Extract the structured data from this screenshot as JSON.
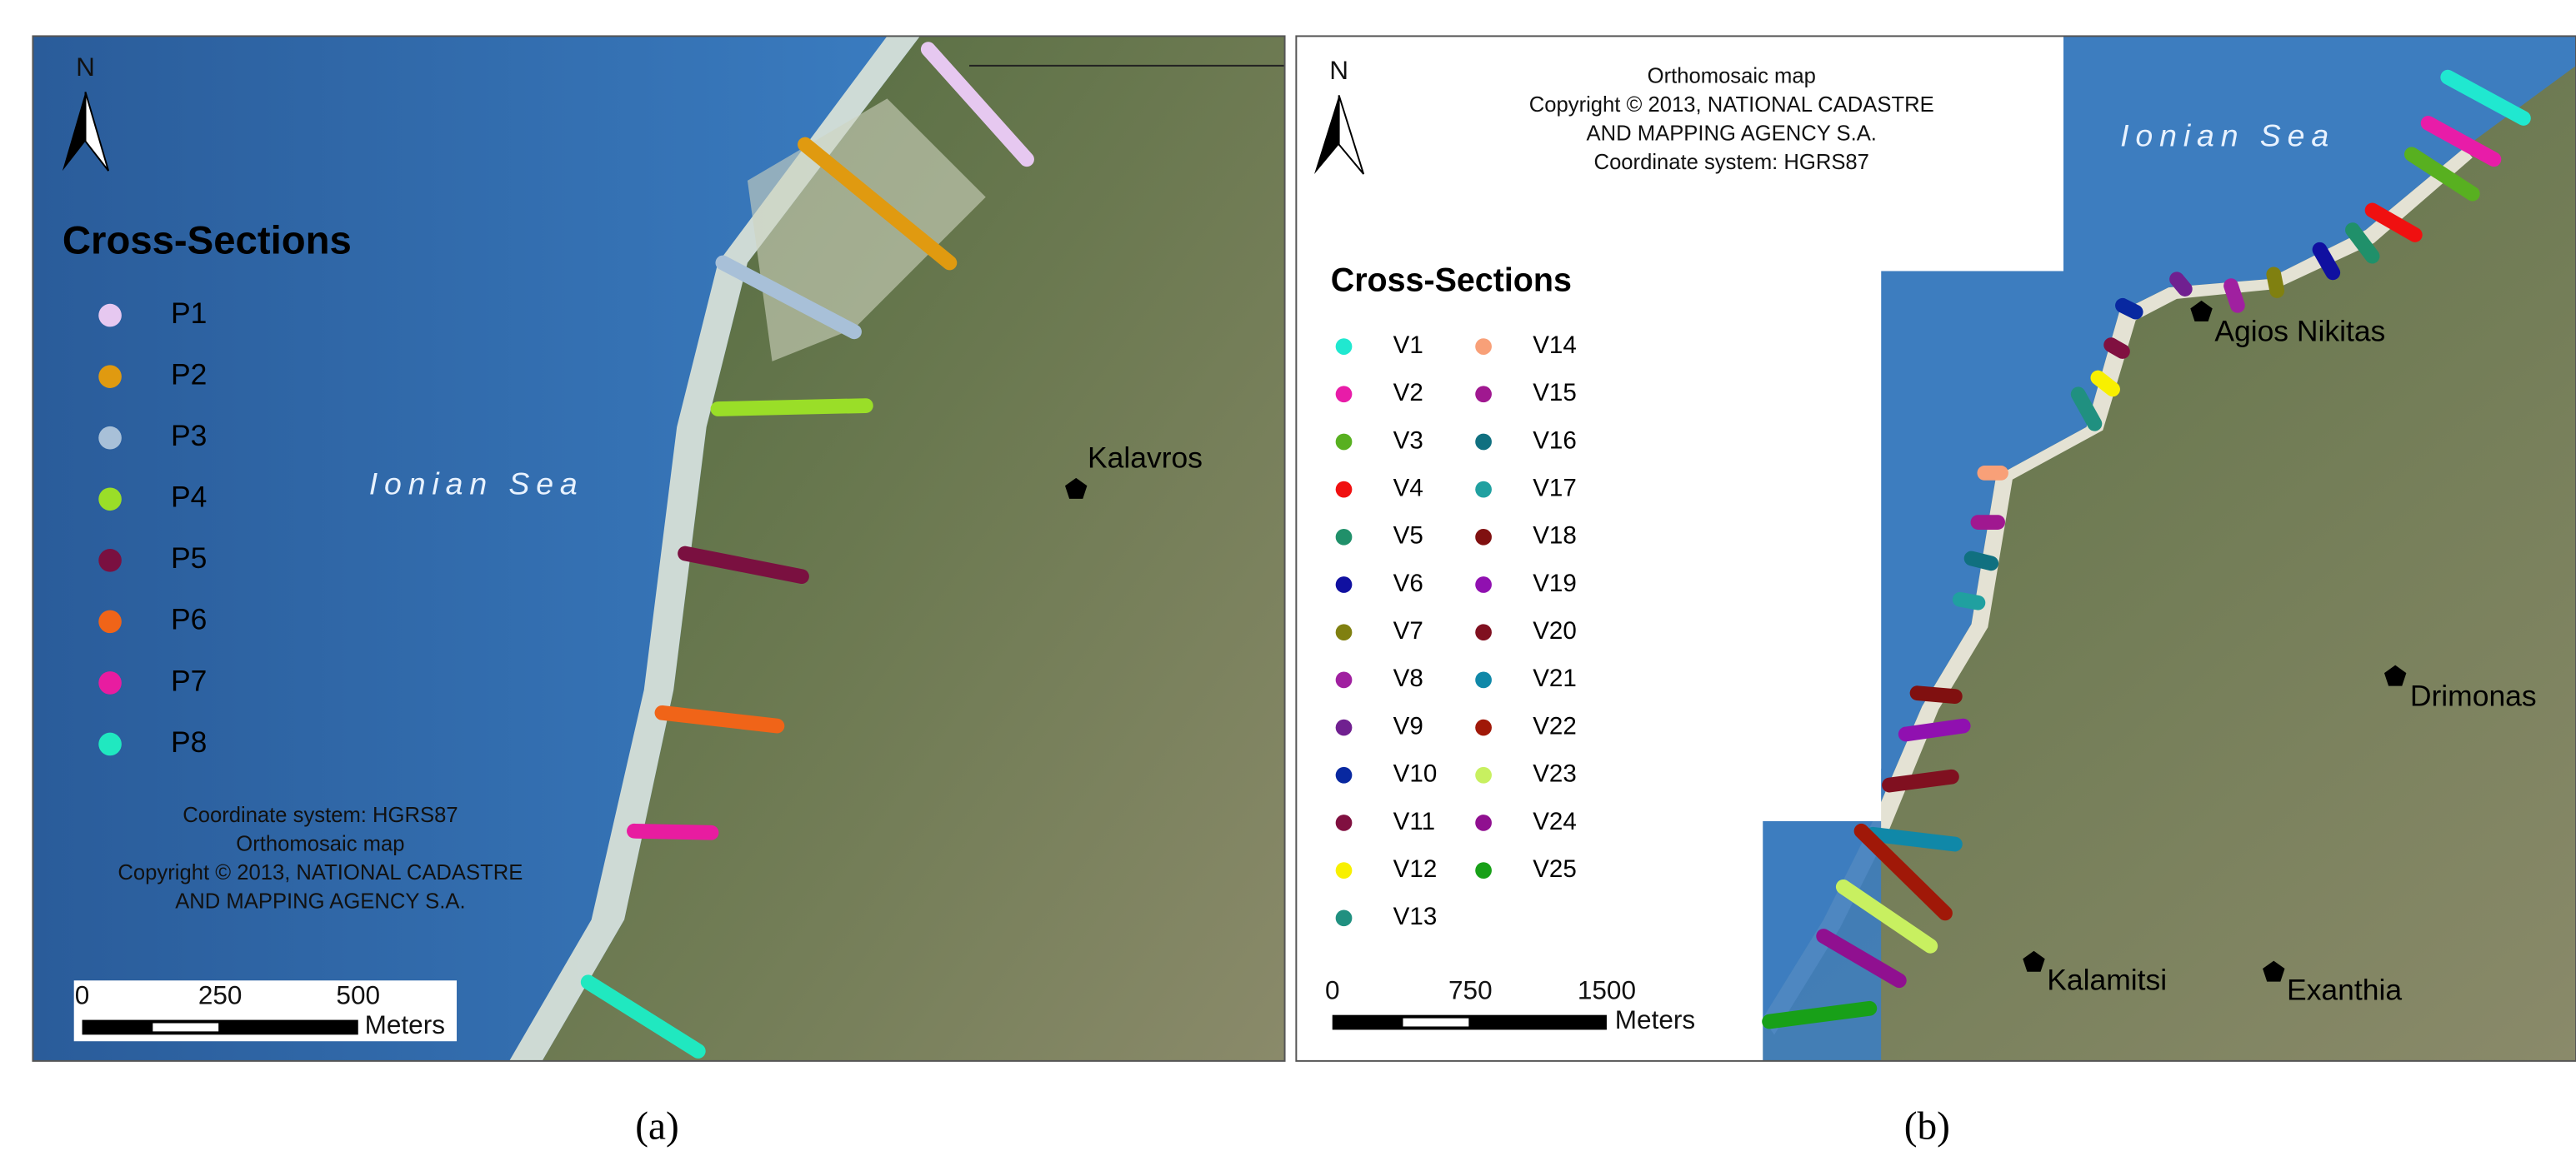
{
  "panels": [
    {
      "caption": "(a)",
      "north": "N",
      "legend_title": "Cross-Sections",
      "sections": [
        {
          "label": "P1",
          "color": "#e6c8f0"
        },
        {
          "label": "P2",
          "color": "#e09a10"
        },
        {
          "label": "P3",
          "color": "#a8c0d8"
        },
        {
          "label": "P4",
          "color": "#9ade28"
        },
        {
          "label": "P5",
          "color": "#7a1040"
        },
        {
          "label": "P6",
          "color": "#f06418"
        },
        {
          "label": "P7",
          "color": "#e81ca0"
        },
        {
          "label": "P8",
          "color": "#20e8c0"
        }
      ],
      "sea_label": "Ionian Sea",
      "places": [
        "Kalavros"
      ],
      "notes": [
        "Coordinate system: HGRS87",
        "Orthomosaic map",
        "Copyright © 2013, NATIONAL CADASTRE",
        "AND MAPPING AGENCY S.A."
      ],
      "scale": {
        "ticks": [
          0,
          250,
          500
        ],
        "unit": "Meters"
      }
    },
    {
      "caption": "(b)",
      "north": "N",
      "legend_title": "Cross-Sections",
      "sections": [
        {
          "label": "V1",
          "color": "#20e8d0"
        },
        {
          "label": "V2",
          "color": "#e81ca8"
        },
        {
          "label": "V3",
          "color": "#58b020"
        },
        {
          "label": "V4",
          "color": "#f01010"
        },
        {
          "label": "V5",
          "color": "#20906a"
        },
        {
          "label": "V6",
          "color": "#1010a0"
        },
        {
          "label": "V7",
          "color": "#808010"
        },
        {
          "label": "V8",
          "color": "#a020a0"
        },
        {
          "label": "V9",
          "color": "#702090"
        },
        {
          "label": "V10",
          "color": "#0828a0"
        },
        {
          "label": "V11",
          "color": "#801040"
        },
        {
          "label": "V12",
          "color": "#f8f000"
        },
        {
          "label": "V13",
          "color": "#209080"
        },
        {
          "label": "V14",
          "color": "#f8a078"
        },
        {
          "label": "V15",
          "color": "#a01890"
        },
        {
          "label": "V16",
          "color": "#107080"
        },
        {
          "label": "V17",
          "color": "#20a0a0"
        },
        {
          "label": "V18",
          "color": "#801010"
        },
        {
          "label": "V19",
          "color": "#9010b0"
        },
        {
          "label": "V20",
          "color": "#801020"
        },
        {
          "label": "V21",
          "color": "#1088a8"
        },
        {
          "label": "V22",
          "color": "#a01808"
        },
        {
          "label": "V23",
          "color": "#c8f060"
        },
        {
          "label": "V24",
          "color": "#901090"
        },
        {
          "label": "V25",
          "color": "#18a018"
        }
      ],
      "sea_label": "Ionian Sea",
      "places": [
        "Agios Nikitas",
        "Drimonas",
        "Kalamitsi",
        "Exanthia"
      ],
      "notes": [
        "Orthomosaic map",
        "Copyright © 2013, NATIONAL CADASTRE",
        "AND MAPPING AGENCY S.A.",
        "Coordinate system: HGRS87"
      ],
      "scale": {
        "ticks": [
          0,
          750,
          1500
        ],
        "unit": "Meters"
      }
    }
  ]
}
